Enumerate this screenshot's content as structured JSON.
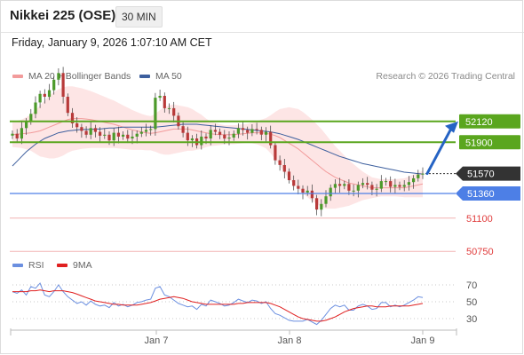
{
  "header": {
    "instrument": "Nikkei 225 (OSE)",
    "interval": "30 MIN"
  },
  "timestamp": "Friday, January 9, 2026 1:07:10 AM CET",
  "legend": {
    "ma20_label": "MA 20 + Bollinger Bands",
    "ma50_label": "MA 50",
    "credit": "Research © 2026 Trading Central"
  },
  "rsi_legend": {
    "rsi_label": "RSI",
    "ma_label": "9MA"
  },
  "colors": {
    "bollinger": "#f29b9b",
    "bollinger_fill": "#fde0e0",
    "ma50": "#3d5f9e",
    "resistance": "#5aa61e",
    "pivot_line": "#4d7fe6",
    "support": "#f2b3b3",
    "rsi": "#6b8fe0",
    "rsi_ma": "#e02020",
    "candle_up": "#4c9a2a",
    "candle_down": "#b83a3a",
    "arrow": "#2563c4"
  },
  "chart_data": {
    "type": "candlestick",
    "x_ticks": [
      "Jan 7",
      "Jan 8",
      "Jan 9"
    ],
    "levels": [
      {
        "value": 52120,
        "label": "52120",
        "kind": "resistance"
      },
      {
        "value": 51900,
        "label": "51900",
        "kind": "resistance"
      },
      {
        "value": 51570,
        "label": "51570",
        "kind": "current"
      },
      {
        "value": 51360,
        "label": "51360",
        "kind": "pivot"
      },
      {
        "value": 51100,
        "label": "51100",
        "kind": "support"
      },
      {
        "value": 50750,
        "label": "50750",
        "kind": "support"
      }
    ],
    "rsi_ticks": [
      "70",
      "50",
      "30"
    ],
    "close": [
      51990,
      51940,
      52050,
      52120,
      52200,
      52320,
      52410,
      52380,
      52450,
      52560,
      52630,
      52380,
      52210,
      52100,
      52060,
      52020,
      51980,
      52050,
      52010,
      51970,
      51980,
      51920,
      52000,
      51960,
      51980,
      51940,
      51960,
      51990,
      52010,
      52030,
      52040,
      52370,
      52390,
      52260,
      52260,
      52180,
      52070,
      52000,
      51920,
      51940,
      51870,
      51960,
      51940,
      52030,
      52010,
      51980,
      51940,
      51950,
      51990,
      52050,
      52030,
      52000,
      52040,
      52030,
      51980,
      52010,
      51870,
      51710,
      51660,
      51590,
      51500,
      51440,
      51410,
      51370,
      51390,
      51310,
      51190,
      51250,
      51330,
      51420,
      51460,
      51440,
      51460,
      51390,
      51390,
      51450,
      51470,
      51450,
      51400,
      51410,
      51490,
      51490,
      51430,
      51450,
      51430,
      51450,
      51480,
      51520,
      51560,
      51570
    ],
    "ma20": [
      51980,
      51985,
      51990,
      51995,
      52000,
      52010,
      52020,
      52040,
      52060,
      52080,
      52100,
      52120,
      52140,
      52150,
      52150,
      52150,
      52145,
      52140,
      52130,
      52120,
      52110,
      52100,
      52090,
      52075,
      52060,
      52045,
      52030,
      52020,
      52010,
      52000,
      51995,
      52000,
      52010,
      52020,
      52030,
      52040,
      52040,
      52040,
      52040,
      52030,
      52020,
      52010,
      52000,
      51990,
      51985,
      51980,
      51980,
      51980,
      51980,
      51985,
      51990,
      51995,
      52000,
      52000,
      52000,
      51995,
      51985,
      51970,
      51950,
      51920,
      51890,
      51860,
      51830,
      51790,
      51750,
      51710,
      51670,
      51630,
      51590,
      51560,
      51530,
      51510,
      51490,
      51470,
      51460,
      51450,
      51440,
      51430,
      51420,
      51420,
      51420,
      51420,
      51420,
      51420,
      51420,
      51420,
      51430,
      51440,
      51450,
      51460
    ],
    "band_width": [
      130,
      140,
      150,
      170,
      190,
      230,
      270,
      300,
      330,
      350,
      360,
      360,
      350,
      340,
      330,
      320,
      310,
      300,
      290,
      280,
      270,
      260,
      250,
      240,
      230,
      220,
      210,
      200,
      190,
      185,
      180,
      200,
      230,
      250,
      260,
      260,
      250,
      240,
      230,
      220,
      200,
      180,
      150,
      130,
      120,
      110,
      100,
      100,
      100,
      100,
      100,
      100,
      110,
      120,
      140,
      160,
      200,
      250,
      300,
      340,
      380,
      400,
      420,
      430,
      430,
      430,
      420,
      410,
      390,
      360,
      330,
      300,
      270,
      240,
      210,
      180,
      150,
      130,
      110,
      100,
      90,
      90,
      90,
      90,
      95,
      100,
      110,
      120,
      130,
      140
    ],
    "ma50": [
      51650,
      51700,
      51750,
      51800,
      51840,
      51880,
      51910,
      51940,
      51960,
      51980,
      52000,
      52010,
      52020,
      52025,
      52030,
      52035,
      52035,
      52035,
      52040,
      52040,
      52045,
      52050,
      52050,
      52055,
      52060,
      52060,
      52060,
      52060,
      52060,
      52060,
      52060,
      52060,
      52065,
      52070,
      52075,
      52080,
      52085,
      52090,
      52090,
      52090,
      52090,
      52085,
      52080,
      52075,
      52070,
      52065,
      52060,
      52055,
      52050,
      52045,
      52040,
      52035,
      52030,
      52025,
      52020,
      52015,
      52010,
      52000,
      51990,
      51975,
      51960,
      51945,
      51930,
      51910,
      51890,
      51870,
      51850,
      51830,
      51810,
      51790,
      51770,
      51750,
      51735,
      51720,
      51705,
      51690,
      51675,
      51665,
      51655,
      51645,
      51635,
      51625,
      51615,
      51605,
      51595,
      51585,
      51580,
      51575,
      51570,
      51565
    ],
    "rsi": [
      62,
      60,
      64,
      58,
      68,
      66,
      72,
      58,
      56,
      62,
      70,
      62,
      56,
      52,
      48,
      50,
      46,
      51,
      47,
      45,
      46,
      43,
      49,
      45,
      47,
      44,
      46,
      49,
      50,
      52,
      53,
      66,
      68,
      58,
      56,
      52,
      48,
      46,
      44,
      45,
      41,
      47,
      45,
      52,
      50,
      48,
      45,
      46,
      49,
      53,
      51,
      49,
      52,
      51,
      48,
      50,
      42,
      36,
      34,
      31,
      28,
      27,
      27,
      27,
      29,
      26,
      23,
      28,
      35,
      42,
      46,
      44,
      46,
      40,
      40,
      45,
      47,
      45,
      41,
      42,
      49,
      49,
      44,
      46,
      44,
      46,
      49,
      52,
      56,
      55
    ],
    "rsi_ma": [
      62,
      62,
      62,
      62,
      63,
      63,
      64,
      63,
      62,
      63,
      63,
      63,
      62,
      61,
      59,
      57,
      55,
      53,
      51,
      50,
      49,
      48,
      47,
      47,
      46,
      46,
      46,
      46,
      47,
      48,
      49,
      51,
      53,
      54,
      55,
      56,
      55,
      54,
      52,
      50,
      49,
      48,
      47,
      47,
      47,
      47,
      47,
      47,
      47,
      48,
      48,
      49,
      49,
      49,
      49,
      49,
      48,
      46,
      44,
      41,
      38,
      35,
      32,
      30,
      29,
      28,
      27,
      27,
      28,
      30,
      32,
      35,
      38,
      40,
      42,
      43,
      44,
      45,
      45,
      44,
      44,
      44,
      45,
      45,
      45,
      45,
      45,
      46,
      47,
      48
    ]
  }
}
